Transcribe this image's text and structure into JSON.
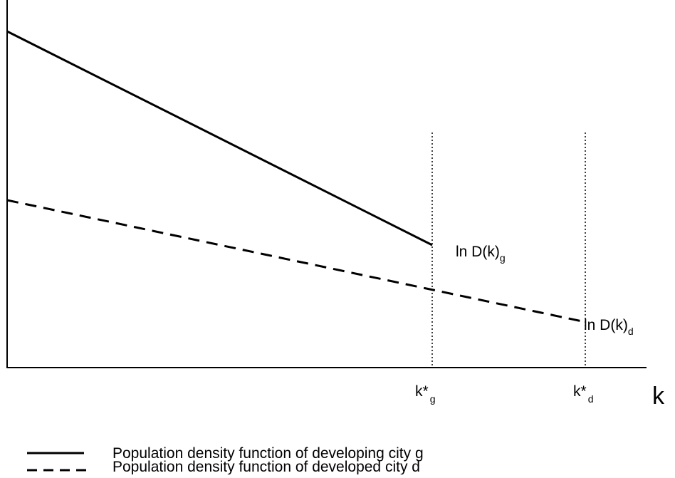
{
  "curves": {
    "developing": {
      "label": "ln D(k)",
      "subscript": "g"
    },
    "developed": {
      "label": "ln D(k)",
      "subscript": "d"
    }
  },
  "x_axis": {
    "label": "k",
    "markers": [
      {
        "label": "k*",
        "subscript": "g"
      },
      {
        "label": "k*",
        "subscript": "d"
      }
    ]
  },
  "legend": [
    "Population density function of developing city g",
    "Population density function of developed city d"
  ]
}
